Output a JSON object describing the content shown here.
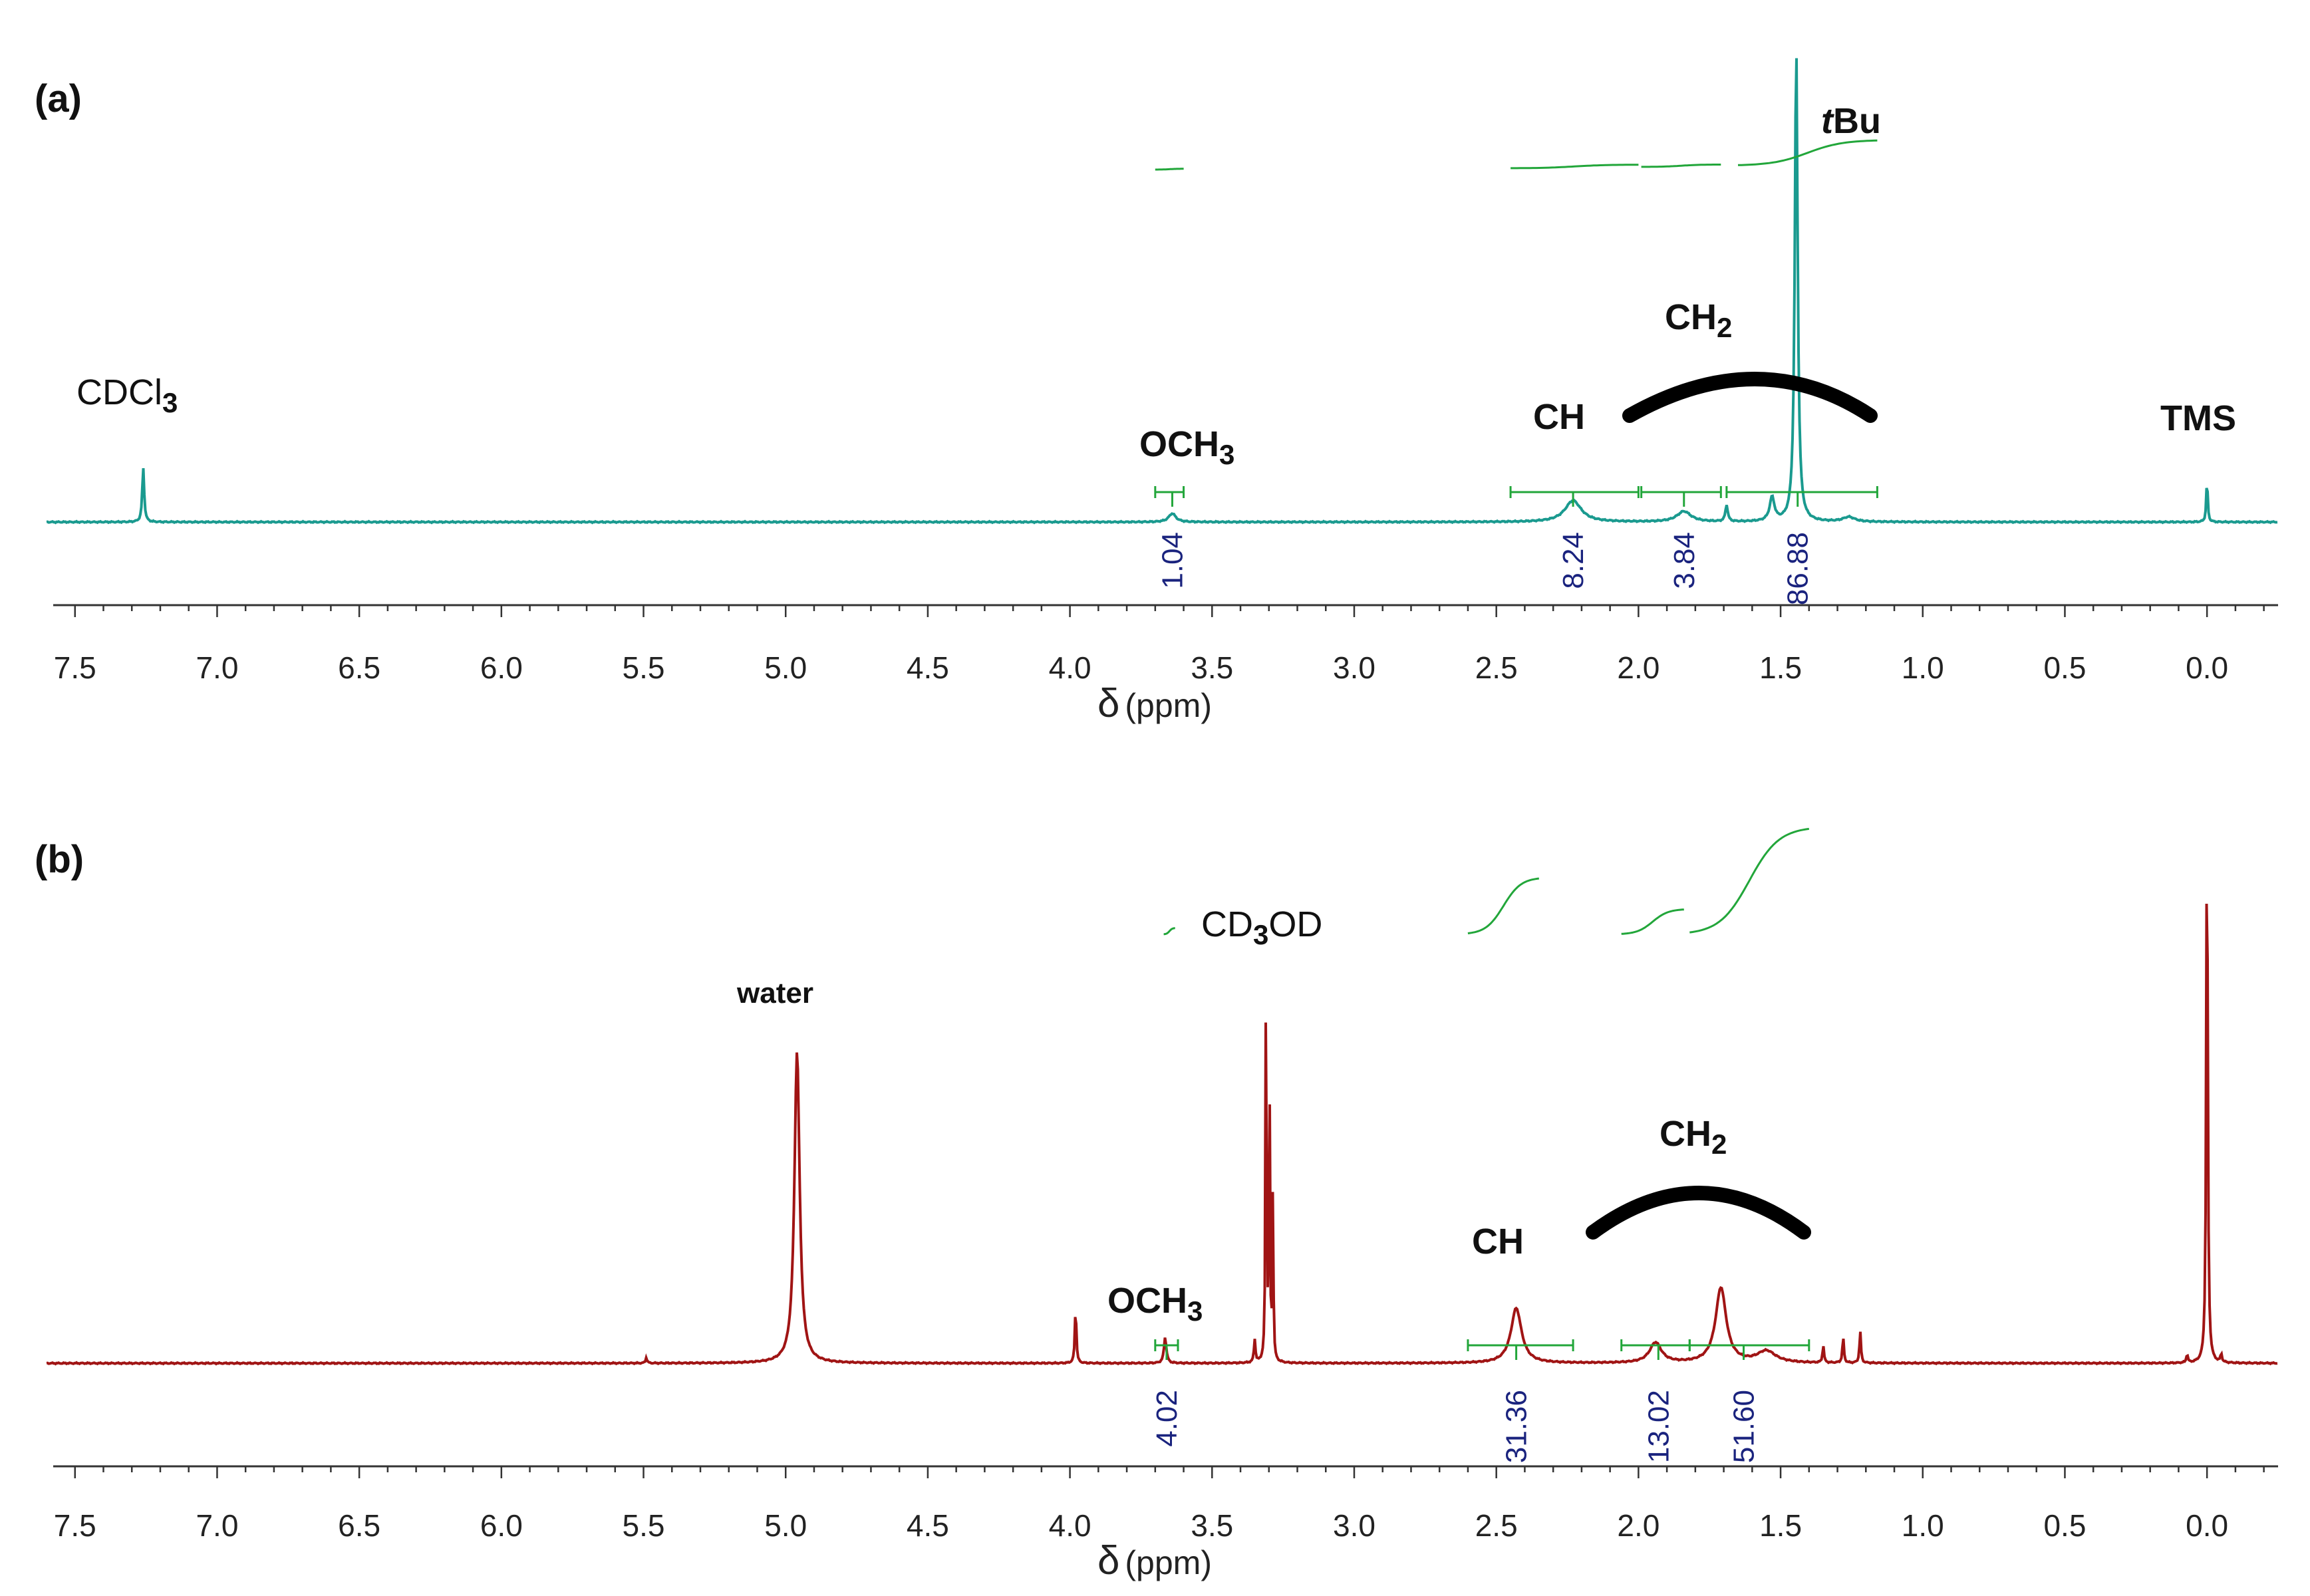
{
  "colors": {
    "spectrum_a": "#1a9a8f",
    "spectrum_b": "#a01414",
    "integral": "#22a63a",
    "integral_value": "#1a237e",
    "axis": "#333333",
    "arc": "#000000"
  },
  "chart_data": [
    {
      "type": "line",
      "panel_label": "(a)",
      "xlabel": "δ (ppm)",
      "xlabel_symbol": "δ",
      "xlabel_unit": "(ppm)",
      "x_range": [
        7.6,
        -0.25
      ],
      "x_reversed": true,
      "ticks": [
        "7.5",
        "7.0",
        "6.5",
        "6.0",
        "5.5",
        "5.0",
        "4.5",
        "4.0",
        "3.5",
        "3.0",
        "2.5",
        "2.0",
        "1.5",
        "1.0",
        "0.5",
        "0.0"
      ],
      "peaks": [
        {
          "ppm": 7.26,
          "height": 0.115,
          "width": 0.008
        },
        {
          "ppm": 3.64,
          "height": 0.018,
          "width": 0.03
        },
        {
          "ppm": 2.23,
          "height": 0.045,
          "width": 0.07
        },
        {
          "ppm": 1.84,
          "height": 0.022,
          "width": 0.06
        },
        {
          "ppm": 1.69,
          "height": 0.035,
          "width": 0.01
        },
        {
          "ppm": 1.53,
          "height": 0.05,
          "width": 0.02
        },
        {
          "ppm": 1.445,
          "height": 1.0,
          "width": 0.012
        },
        {
          "ppm": 1.26,
          "height": 0.01,
          "width": 0.05
        },
        {
          "ppm": 0.0,
          "height": 0.09,
          "width": 0.006
        }
      ],
      "labels": {
        "solvent": {
          "main": "CDCl",
          "sub": "3"
        },
        "och3": {
          "main": "OCH",
          "sub": "3"
        },
        "ch": "CH",
        "ch2": {
          "main": "CH",
          "sub": "2"
        },
        "tbu": {
          "italic": "t",
          "rest": "Bu"
        },
        "tms": "TMS"
      },
      "integrals": [
        {
          "from": 3.7,
          "to": 3.6,
          "value": "1.04",
          "marker": 3.64
        },
        {
          "from": 2.45,
          "to": 2.0,
          "value": "8.24",
          "marker": 2.23
        },
        {
          "from": 1.99,
          "to": 1.71,
          "value": "3.84",
          "marker": 1.84
        },
        {
          "from": 1.69,
          "to": 1.16,
          "value": "86.88",
          "marker": 1.44
        }
      ],
      "integral_curves": [
        {
          "from": 3.7,
          "to": 3.6,
          "rise": 0.1
        },
        {
          "from": 2.45,
          "to": 2.0,
          "rise": 0.45
        },
        {
          "from": 1.99,
          "to": 1.71,
          "rise": 0.3
        },
        {
          "from": 1.65,
          "to": 1.16,
          "rise": 3.2
        }
      ]
    },
    {
      "type": "line",
      "panel_label": "(b)",
      "xlabel": "δ (ppm)",
      "xlabel_symbol": "δ",
      "xlabel_unit": "(ppm)",
      "x_range": [
        7.6,
        -0.25
      ],
      "x_reversed": true,
      "ticks": [
        "7.5",
        "7.0",
        "6.5",
        "6.0",
        "5.5",
        "5.0",
        "4.5",
        "4.0",
        "3.5",
        "3.0",
        "2.5",
        "2.0",
        "1.5",
        "1.0",
        "0.5",
        "0.0"
      ],
      "peaks": [
        {
          "ppm": 5.49,
          "height": 0.01,
          "width": 0.006
        },
        {
          "ppm": 4.96,
          "height": 0.54,
          "width": 0.022
        },
        {
          "ppm": 3.98,
          "height": 0.1,
          "width": 0.006
        },
        {
          "ppm": 3.665,
          "height": 0.045,
          "width": 0.01
        },
        {
          "ppm": 3.35,
          "height": 0.04,
          "width": 0.006
        },
        {
          "ppm": 3.31,
          "height": 0.77,
          "width": 0.004
        },
        {
          "ppm": 3.298,
          "height": 0.5,
          "width": 0.004
        },
        {
          "ppm": 3.286,
          "height": 0.3,
          "width": 0.004
        },
        {
          "ppm": 2.43,
          "height": 0.095,
          "width": 0.045
        },
        {
          "ppm": 1.94,
          "height": 0.035,
          "width": 0.05
        },
        {
          "ppm": 1.71,
          "height": 0.13,
          "width": 0.045
        },
        {
          "ppm": 1.55,
          "height": 0.02,
          "width": 0.08
        },
        {
          "ppm": 1.35,
          "height": 0.03,
          "width": 0.006
        },
        {
          "ppm": 1.28,
          "height": 0.045,
          "width": 0.006
        },
        {
          "ppm": 1.22,
          "height": 0.055,
          "width": 0.006
        },
        {
          "ppm": 0.07,
          "height": 0.015,
          "width": 0.006
        },
        {
          "ppm": 0.0,
          "height": 1.0,
          "width": 0.006
        },
        {
          "ppm": -0.05,
          "height": 0.015,
          "width": 0.006
        }
      ],
      "labels": {
        "solvent": {
          "main": "CD",
          "sub": "3",
          "tail": "OD"
        },
        "water": "water",
        "och3": {
          "main": "OCH",
          "sub": "3"
        },
        "ch": "CH",
        "ch2": {
          "main": "CH",
          "sub": "2"
        }
      },
      "integrals": [
        {
          "from": 3.7,
          "to": 3.62,
          "value": "4.02",
          "marker": 3.66
        },
        {
          "from": 2.6,
          "to": 2.23,
          "value": "31.36",
          "marker": 2.43
        },
        {
          "from": 2.06,
          "to": 1.82,
          "value": "13.02",
          "marker": 1.93
        },
        {
          "from": 1.82,
          "to": 1.4,
          "value": "51.60",
          "marker": 1.63
        }
      ],
      "integral_curves": [
        {
          "from": 3.67,
          "to": 3.63,
          "rise": 0.1
        },
        {
          "from": 2.6,
          "to": 2.35,
          "rise": 0.9
        },
        {
          "from": 2.06,
          "to": 1.84,
          "rise": 0.4
        },
        {
          "from": 1.82,
          "to": 1.4,
          "rise": 1.7
        }
      ]
    }
  ]
}
